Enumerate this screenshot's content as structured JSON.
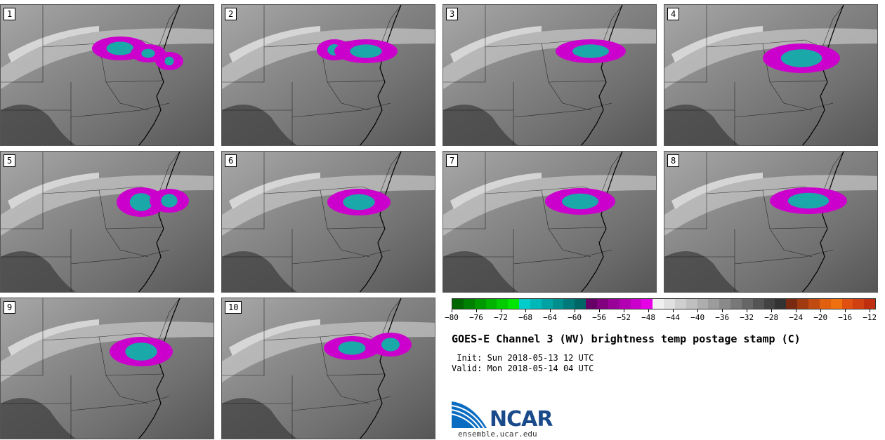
{
  "panels": [
    {
      "label": "1"
    },
    {
      "label": "2"
    },
    {
      "label": "3"
    },
    {
      "label": "4"
    },
    {
      "label": "5"
    },
    {
      "label": "6"
    },
    {
      "label": "7"
    },
    {
      "label": "8"
    },
    {
      "label": "9"
    },
    {
      "label": "10"
    }
  ],
  "colorbar": {
    "colors": [
      "#006600",
      "#008000",
      "#009900",
      "#00b300",
      "#00cc00",
      "#00e600",
      "#00cccc",
      "#00b8b8",
      "#00a3a3",
      "#008f8f",
      "#007a7a",
      "#006666",
      "#660066",
      "#800080",
      "#990099",
      "#b300b3",
      "#cc00cc",
      "#e600e6",
      "#f0f0f0",
      "#e0e0e0",
      "#cfcfcf",
      "#bfbfbf",
      "#adadad",
      "#9c9c9c",
      "#8a8a8a",
      "#787878",
      "#666666",
      "#545454",
      "#424242",
      "#333333",
      "#7a2a10",
      "#a03a10",
      "#c04a10",
      "#e06010",
      "#f07010",
      "#e05010",
      "#d04010",
      "#c03010"
    ],
    "min": -80,
    "max": -11,
    "ticks": [
      "−80",
      "−76",
      "−72",
      "−68",
      "−64",
      "−60",
      "−56",
      "−52",
      "−48",
      "−44",
      "−40",
      "−36",
      "−32",
      "−28",
      "−24",
      "−20",
      "−16",
      "−12"
    ]
  },
  "title": "GOES-E Channel 3 (WV) brightness temp postage stamp (C)",
  "init": " Init: Sun 2018-05-13 12 UTC",
  "valid": "Valid: Mon 2018-05-14 04 UTC",
  "logo": {
    "name": "NCAR",
    "url": "ensemble.ucar.edu"
  }
}
